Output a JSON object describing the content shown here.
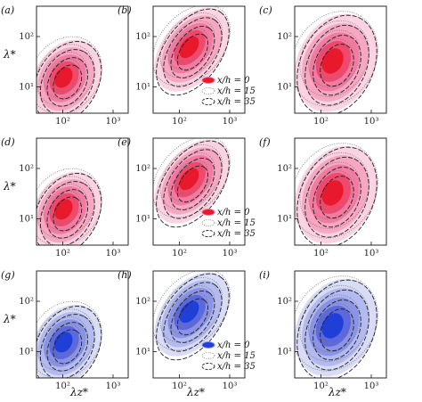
{
  "chart_data": {
    "type": "contour",
    "layout": "3x3 panel grid",
    "xlabel": "λz*",
    "ylabel": "λ*",
    "x_scale": "log",
    "y_scale": "log",
    "xlim": [
      30,
      2000
    ],
    "ylim": [
      3,
      400
    ],
    "x_ticks": [
      100,
      1000
    ],
    "x_tick_labels": [
      "10²",
      "10³"
    ],
    "y_ticks": [
      10,
      100
    ],
    "y_tick_labels": [
      "10¹",
      "10²"
    ],
    "legend_entries": [
      "x/h = 0",
      "x/h = 15",
      "x/h = 35"
    ],
    "legend_panels": [
      "b",
      "e",
      "h"
    ],
    "series_styles": {
      "x/h = 0": "filled contours",
      "x/h = 15": "dotted contour lines",
      "x/h = 35": "dashed contour lines"
    },
    "panels": [
      {
        "label": "(a)",
        "row": 0,
        "col": 0,
        "color": "#e8192c",
        "peak": [
          120,
          14
        ]
      },
      {
        "label": "(b)",
        "row": 0,
        "col": 1,
        "color": "#e8192c",
        "peak": [
          180,
          55
        ]
      },
      {
        "label": "(c)",
        "row": 0,
        "col": 2,
        "color": "#e8192c",
        "peak": [
          200,
          30
        ]
      },
      {
        "label": "(d)",
        "row": 1,
        "col": 0,
        "color": "#e8192c",
        "peak": [
          120,
          14
        ]
      },
      {
        "label": "(e)",
        "row": 1,
        "col": 1,
        "color": "#e8192c",
        "peak": [
          180,
          55
        ]
      },
      {
        "label": "(f)",
        "row": 1,
        "col": 2,
        "color": "#e8192c",
        "peak": [
          200,
          30
        ]
      },
      {
        "label": "(g)",
        "row": 2,
        "col": 0,
        "color": "#1f3fd6",
        "peak": [
          120,
          14
        ]
      },
      {
        "label": "(h)",
        "row": 2,
        "col": 1,
        "color": "#1f3fd6",
        "peak": [
          180,
          55
        ]
      },
      {
        "label": "(i)",
        "row": 2,
        "col": 2,
        "color": "#1f3fd6",
        "peak": [
          200,
          30
        ]
      }
    ]
  }
}
